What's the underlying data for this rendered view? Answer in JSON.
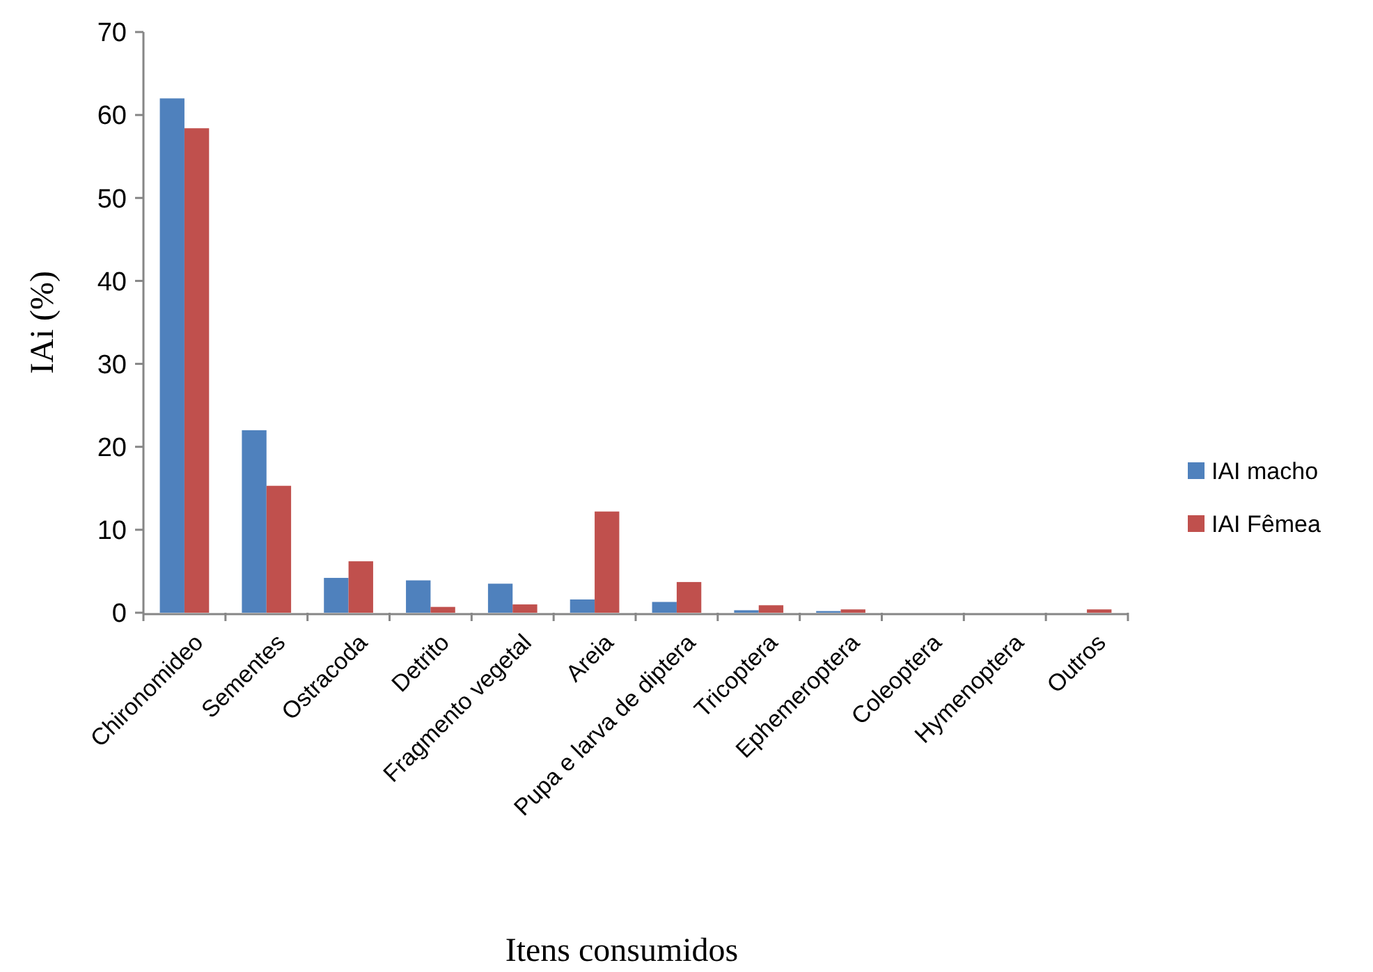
{
  "chart_data": {
    "type": "bar",
    "xlabel": "Itens consumidos",
    "ylabel": "IAi (%)",
    "categories": [
      "Chironomideo",
      "Sementes",
      "Ostracoda",
      "Detrito",
      "Fragmento vegetal",
      "Areia",
      "Pupa e larva de diptera",
      "Tricoptera",
      "Ephemeroptera",
      "Coleoptera",
      "Hymenoptera",
      "Outros"
    ],
    "series": [
      {
        "name": "IAI macho",
        "color": "#4f81bd",
        "values": [
          62,
          22,
          4.2,
          3.9,
          3.5,
          1.6,
          1.3,
          0.3,
          0.2,
          0,
          0,
          0
        ]
      },
      {
        "name": "IAI Fêmea",
        "color": "#c0504d",
        "values": [
          58.4,
          15.3,
          6.2,
          0.7,
          1.0,
          12.2,
          3.7,
          0.9,
          0.4,
          0,
          0,
          0.4
        ]
      }
    ],
    "ylim": [
      0,
      70
    ],
    "yticks": [
      0,
      10,
      20,
      30,
      40,
      50,
      60,
      70
    ],
    "grid": false,
    "legend": "right"
  }
}
